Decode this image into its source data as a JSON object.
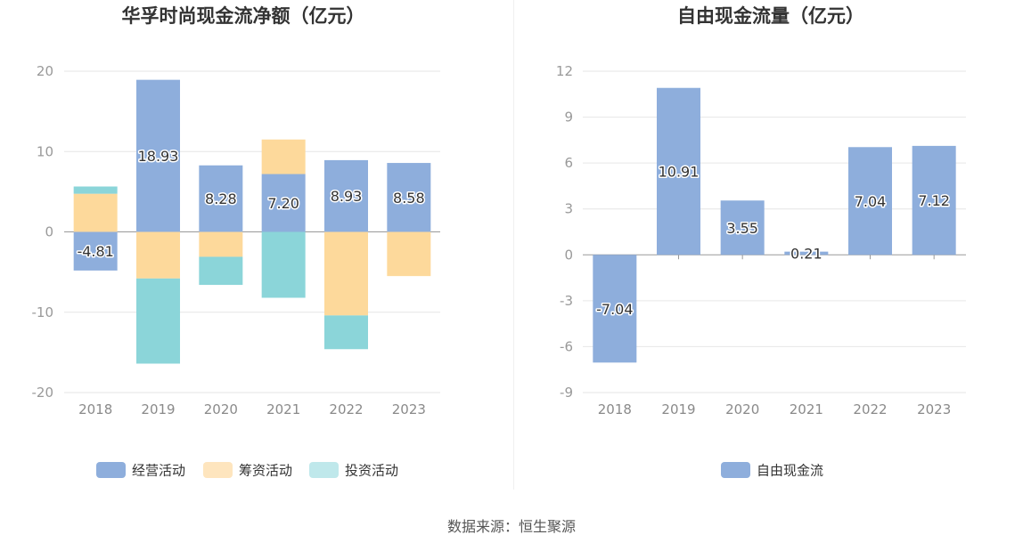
{
  "source": "数据来源：恒生聚源",
  "chart_data": [
    {
      "type": "bar",
      "stacked": true,
      "title": "华孚时尚现金流净额（亿元）",
      "categories": [
        "2018",
        "2019",
        "2020",
        "2021",
        "2022",
        "2023"
      ],
      "series": [
        {
          "name": "经营活动",
          "values": [
            -4.81,
            18.93,
            8.28,
            7.2,
            8.93,
            8.58
          ],
          "labels": [
            "-4.81",
            "18.93",
            "8.28",
            "7.20",
            "8.93",
            "8.58"
          ],
          "color": "#8eaedc",
          "legend_color": "#8eaedc"
        },
        {
          "name": "筹资活动",
          "values": [
            4.75,
            -5.8,
            -3.1,
            4.3,
            -10.4,
            -5.5
          ],
          "color": "#fdd99b",
          "legend_color": "#fee5be"
        },
        {
          "name": "投资活动",
          "values": [
            0.9,
            -10.6,
            -3.5,
            -8.2,
            -4.2,
            0
          ],
          "color": "#8bd5d9",
          "legend_color": "#bfe8eb"
        }
      ],
      "ylim": [
        -20,
        20
      ],
      "yticks": [
        20,
        10,
        0,
        -10,
        -20
      ],
      "grid": true,
      "legend_position": "bottom"
    },
    {
      "type": "bar",
      "title": "自由现金流量（亿元）",
      "categories": [
        "2018",
        "2019",
        "2020",
        "2021",
        "2022",
        "2023"
      ],
      "series": [
        {
          "name": "自由现金流",
          "values": [
            -7.04,
            10.91,
            3.55,
            0.21,
            7.04,
            7.12
          ],
          "labels": [
            "-7.04",
            "10.91",
            "3.55",
            "0.21",
            "7.04",
            "7.12"
          ],
          "color": "#8eaedc",
          "legend_color": "#8eaedc"
        }
      ],
      "ylim": [
        -9,
        12
      ],
      "yticks": [
        12,
        9,
        6,
        3,
        0,
        -3,
        -6,
        -9
      ],
      "grid": true,
      "legend_position": "bottom"
    }
  ]
}
